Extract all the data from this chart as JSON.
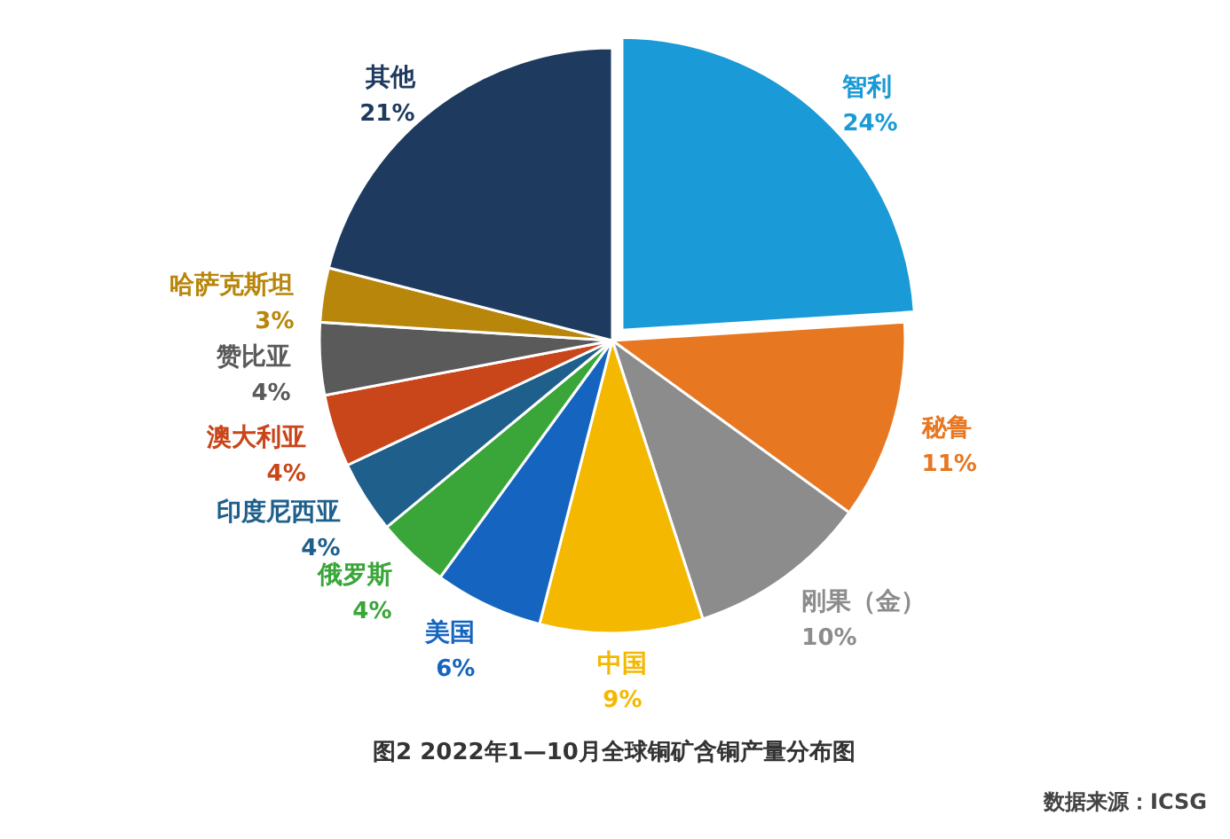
{
  "chart_data": {
    "type": "pie",
    "title": "图2 2022年1—10月全球铜矿含铜产量分布图",
    "annotations": [
      "数据来源：ICSG"
    ],
    "categories": [
      "智利",
      "秘鲁",
      "刚果（金）",
      "中国",
      "美国",
      "俄罗斯",
      "印度尼西亚",
      "澳大利亚",
      "赞比亚",
      "哈萨克斯坦",
      "其他"
    ],
    "values": [
      24,
      11,
      10,
      9,
      6,
      4,
      4,
      4,
      4,
      3,
      21
    ],
    "value_labels": [
      "24%",
      "11%",
      "10%",
      "9%",
      "6%",
      "4%",
      "4%",
      "4%",
      "4%",
      "3%",
      "21%"
    ],
    "colors": [
      "#1a9ad6",
      "#e87722",
      "#8c8c8c",
      "#f5b800",
      "#1565c0",
      "#3aa639",
      "#1f5f8b",
      "#c9461a",
      "#5a5a5a",
      "#b8860b",
      "#1e3a5f"
    ]
  }
}
